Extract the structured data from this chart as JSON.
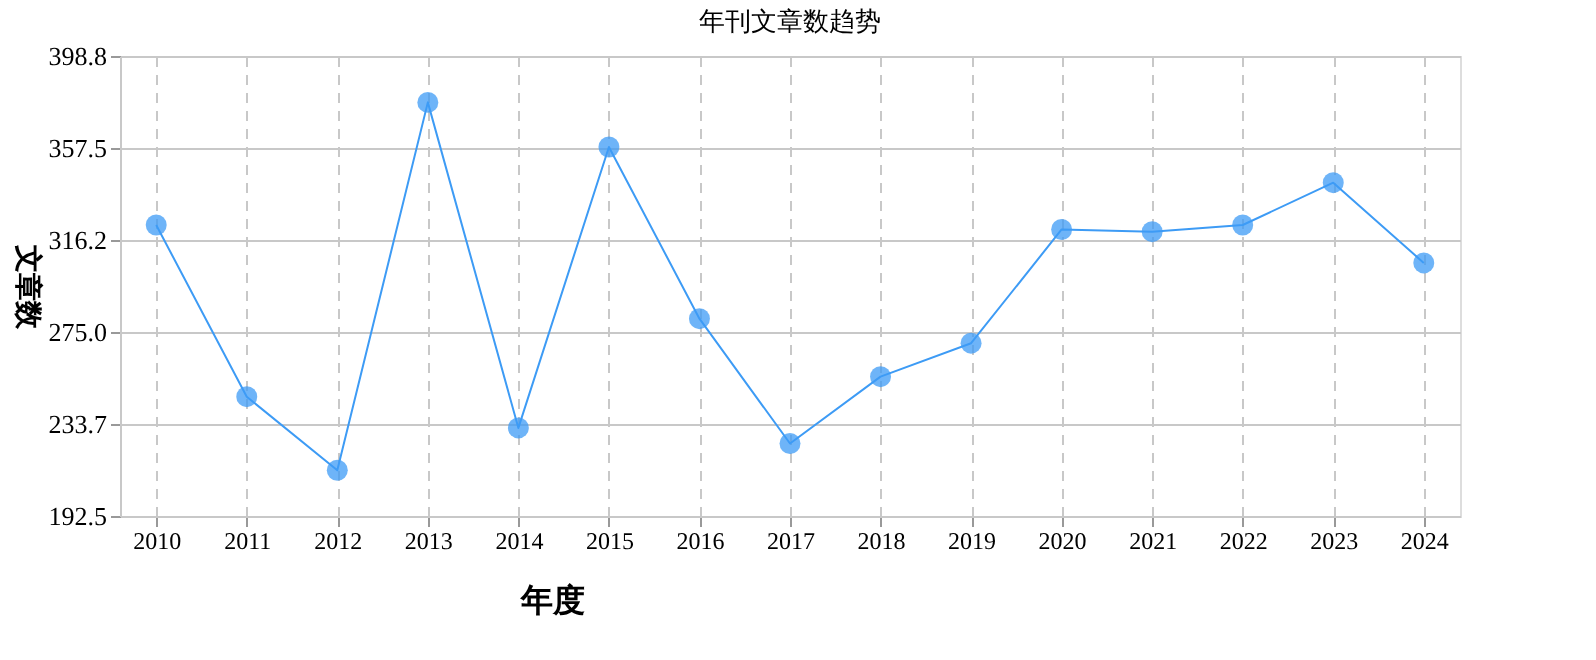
{
  "chart_data": {
    "type": "line",
    "title": "年刊文章数趋势",
    "xlabel": "年度",
    "ylabel": "文章数",
    "categories": [
      "2010",
      "2011",
      "2012",
      "2013",
      "2014",
      "2015",
      "2016",
      "2017",
      "2018",
      "2019",
      "2020",
      "2021",
      "2022",
      "2023",
      "2024"
    ],
    "series": [
      {
        "color": "#3d9bf5",
        "values": [
          323,
          246,
          213,
          378,
          232,
          358,
          281,
          225,
          255,
          270,
          321,
          320,
          323,
          342,
          306
        ]
      }
    ],
    "ylim": [
      192.5,
      398.8
    ],
    "yticks": [
      {
        "value": 192.5,
        "label": "192.5"
      },
      {
        "value": 233.7,
        "label": "233.7"
      },
      {
        "value": 275.0,
        "label": "275.0"
      },
      {
        "value": 316.2,
        "label": "316.2"
      },
      {
        "value": 357.5,
        "label": "357.5"
      },
      {
        "value": 398.8,
        "label": "398.8"
      }
    ],
    "grid": true,
    "marker": "circle",
    "line_style": "solid"
  }
}
